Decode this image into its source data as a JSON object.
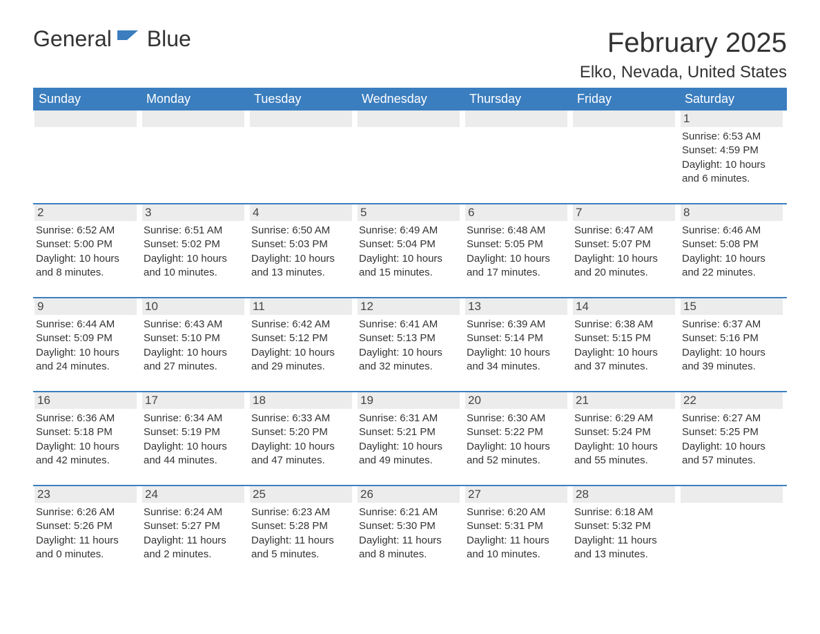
{
  "logo": {
    "text1": "General",
    "text2": "Blue"
  },
  "title": "February 2025",
  "location": "Elko, Nevada, United States",
  "colors": {
    "header_bg": "#3b7ebf",
    "header_text": "#ffffff",
    "daynum_bg": "#ececec",
    "border": "#3b7ebf",
    "text": "#333333",
    "background": "#ffffff"
  },
  "typography": {
    "title_fontsize": 40,
    "location_fontsize": 24,
    "weekday_fontsize": 18,
    "daynum_fontsize": 17,
    "body_fontsize": 15
  },
  "weekdays": [
    "Sunday",
    "Monday",
    "Tuesday",
    "Wednesday",
    "Thursday",
    "Friday",
    "Saturday"
  ],
  "weeks": [
    [
      null,
      null,
      null,
      null,
      null,
      null,
      {
        "n": "1",
        "sr": "Sunrise: 6:53 AM",
        "ss": "Sunset: 4:59 PM",
        "dl": "Daylight: 10 hours and 6 minutes."
      }
    ],
    [
      {
        "n": "2",
        "sr": "Sunrise: 6:52 AM",
        "ss": "Sunset: 5:00 PM",
        "dl": "Daylight: 10 hours and 8 minutes."
      },
      {
        "n": "3",
        "sr": "Sunrise: 6:51 AM",
        "ss": "Sunset: 5:02 PM",
        "dl": "Daylight: 10 hours and 10 minutes."
      },
      {
        "n": "4",
        "sr": "Sunrise: 6:50 AM",
        "ss": "Sunset: 5:03 PM",
        "dl": "Daylight: 10 hours and 13 minutes."
      },
      {
        "n": "5",
        "sr": "Sunrise: 6:49 AM",
        "ss": "Sunset: 5:04 PM",
        "dl": "Daylight: 10 hours and 15 minutes."
      },
      {
        "n": "6",
        "sr": "Sunrise: 6:48 AM",
        "ss": "Sunset: 5:05 PM",
        "dl": "Daylight: 10 hours and 17 minutes."
      },
      {
        "n": "7",
        "sr": "Sunrise: 6:47 AM",
        "ss": "Sunset: 5:07 PM",
        "dl": "Daylight: 10 hours and 20 minutes."
      },
      {
        "n": "8",
        "sr": "Sunrise: 6:46 AM",
        "ss": "Sunset: 5:08 PM",
        "dl": "Daylight: 10 hours and 22 minutes."
      }
    ],
    [
      {
        "n": "9",
        "sr": "Sunrise: 6:44 AM",
        "ss": "Sunset: 5:09 PM",
        "dl": "Daylight: 10 hours and 24 minutes."
      },
      {
        "n": "10",
        "sr": "Sunrise: 6:43 AM",
        "ss": "Sunset: 5:10 PM",
        "dl": "Daylight: 10 hours and 27 minutes."
      },
      {
        "n": "11",
        "sr": "Sunrise: 6:42 AM",
        "ss": "Sunset: 5:12 PM",
        "dl": "Daylight: 10 hours and 29 minutes."
      },
      {
        "n": "12",
        "sr": "Sunrise: 6:41 AM",
        "ss": "Sunset: 5:13 PM",
        "dl": "Daylight: 10 hours and 32 minutes."
      },
      {
        "n": "13",
        "sr": "Sunrise: 6:39 AM",
        "ss": "Sunset: 5:14 PM",
        "dl": "Daylight: 10 hours and 34 minutes."
      },
      {
        "n": "14",
        "sr": "Sunrise: 6:38 AM",
        "ss": "Sunset: 5:15 PM",
        "dl": "Daylight: 10 hours and 37 minutes."
      },
      {
        "n": "15",
        "sr": "Sunrise: 6:37 AM",
        "ss": "Sunset: 5:16 PM",
        "dl": "Daylight: 10 hours and 39 minutes."
      }
    ],
    [
      {
        "n": "16",
        "sr": "Sunrise: 6:36 AM",
        "ss": "Sunset: 5:18 PM",
        "dl": "Daylight: 10 hours and 42 minutes."
      },
      {
        "n": "17",
        "sr": "Sunrise: 6:34 AM",
        "ss": "Sunset: 5:19 PM",
        "dl": "Daylight: 10 hours and 44 minutes."
      },
      {
        "n": "18",
        "sr": "Sunrise: 6:33 AM",
        "ss": "Sunset: 5:20 PM",
        "dl": "Daylight: 10 hours and 47 minutes."
      },
      {
        "n": "19",
        "sr": "Sunrise: 6:31 AM",
        "ss": "Sunset: 5:21 PM",
        "dl": "Daylight: 10 hours and 49 minutes."
      },
      {
        "n": "20",
        "sr": "Sunrise: 6:30 AM",
        "ss": "Sunset: 5:22 PM",
        "dl": "Daylight: 10 hours and 52 minutes."
      },
      {
        "n": "21",
        "sr": "Sunrise: 6:29 AM",
        "ss": "Sunset: 5:24 PM",
        "dl": "Daylight: 10 hours and 55 minutes."
      },
      {
        "n": "22",
        "sr": "Sunrise: 6:27 AM",
        "ss": "Sunset: 5:25 PM",
        "dl": "Daylight: 10 hours and 57 minutes."
      }
    ],
    [
      {
        "n": "23",
        "sr": "Sunrise: 6:26 AM",
        "ss": "Sunset: 5:26 PM",
        "dl": "Daylight: 11 hours and 0 minutes."
      },
      {
        "n": "24",
        "sr": "Sunrise: 6:24 AM",
        "ss": "Sunset: 5:27 PM",
        "dl": "Daylight: 11 hours and 2 minutes."
      },
      {
        "n": "25",
        "sr": "Sunrise: 6:23 AM",
        "ss": "Sunset: 5:28 PM",
        "dl": "Daylight: 11 hours and 5 minutes."
      },
      {
        "n": "26",
        "sr": "Sunrise: 6:21 AM",
        "ss": "Sunset: 5:30 PM",
        "dl": "Daylight: 11 hours and 8 minutes."
      },
      {
        "n": "27",
        "sr": "Sunrise: 6:20 AM",
        "ss": "Sunset: 5:31 PM",
        "dl": "Daylight: 11 hours and 10 minutes."
      },
      {
        "n": "28",
        "sr": "Sunrise: 6:18 AM",
        "ss": "Sunset: 5:32 PM",
        "dl": "Daylight: 11 hours and 13 minutes."
      },
      null
    ]
  ]
}
